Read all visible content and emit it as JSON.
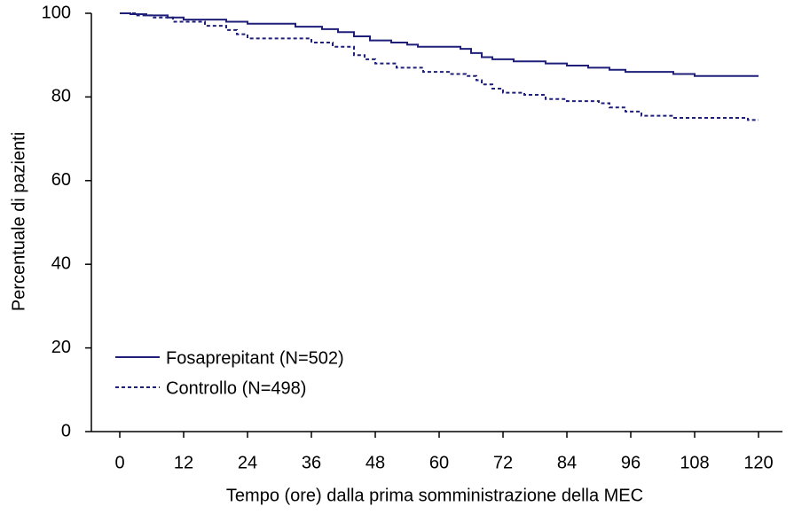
{
  "chart_data": {
    "type": "step",
    "x_label": "Tempo (ore) dalla prima somministrazione della MEC",
    "y_label": "Percentuale di pazienti",
    "xlim": [
      0,
      120
    ],
    "xticks": [
      0,
      12,
      24,
      36,
      48,
      60,
      72,
      84,
      96,
      108,
      120
    ],
    "ylim": [
      0,
      100
    ],
    "yticks": [
      0,
      20,
      40,
      60,
      80,
      100
    ],
    "legend": "lower left",
    "series": [
      {
        "name": "Fosaprepitant (N=502)",
        "color": "#1f1f7a",
        "line_style": "solid",
        "x": [
          0,
          2,
          5,
          9,
          12,
          20,
          24,
          33,
          38,
          41,
          44,
          47,
          51,
          54,
          56,
          64,
          66,
          68,
          70,
          74,
          80,
          84,
          88,
          92,
          95,
          104,
          108,
          120
        ],
        "values": [
          100,
          99.8,
          99.5,
          99,
          98.5,
          98,
          97.5,
          96.8,
          96.2,
          95.5,
          94.5,
          93.5,
          93,
          92.5,
          92,
          91.5,
          90.5,
          89.5,
          89,
          88.5,
          88,
          87.5,
          87,
          86.5,
          86,
          85.5,
          85,
          85
        ]
      },
      {
        "name": "Controllo (N=498)",
        "color": "#1f1f7a",
        "line_style": "dashed",
        "x": [
          0,
          3,
          6,
          10,
          16,
          20,
          22,
          24,
          30,
          36,
          40,
          44,
          46,
          48,
          52,
          57,
          62,
          65,
          67,
          68,
          70,
          72,
          76,
          80,
          84,
          90,
          92,
          95,
          98,
          104,
          118,
          120
        ],
        "values": [
          100,
          99.5,
          99,
          98,
          97,
          96,
          95,
          94,
          94,
          93,
          92,
          90,
          89,
          88,
          87,
          86,
          85.5,
          85,
          84,
          83,
          82,
          81,
          80.5,
          79.5,
          79,
          78.5,
          77.5,
          76.5,
          75.5,
          75,
          74.5,
          74.5
        ]
      }
    ]
  }
}
